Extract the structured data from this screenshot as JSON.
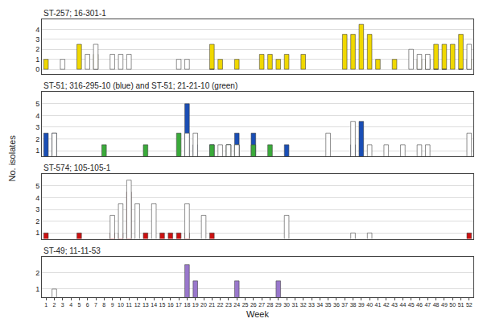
{
  "chart_data": [
    {
      "type": "bar",
      "title": "ST-257; 16-301-1",
      "xlim": [
        0.5,
        52.5
      ],
      "ylim": [
        -0.5,
        5
      ],
      "yticks": [
        0,
        1,
        2,
        3,
        4
      ],
      "grid": "y",
      "tick_labels": "y",
      "series": [
        {
          "color": "#f0d800",
          "x": [
            1,
            5,
            7,
            21,
            22,
            24,
            27,
            28,
            29,
            30,
            32,
            37,
            38,
            39,
            40,
            41,
            43,
            46,
            47,
            48,
            49,
            50,
            51,
            52
          ],
          "values": [
            1,
            2.5,
            1.5,
            2.5,
            1,
            1,
            1.5,
            1.5,
            1,
            1.5,
            1.5,
            3.5,
            3.5,
            4.5,
            3.5,
            1,
            1,
            1,
            1,
            2.5,
            2.5,
            2.5,
            3.5,
            1
          ]
        },
        {
          "color": "#ffffff",
          "x": [
            3,
            6,
            7,
            9,
            10,
            11,
            17,
            18,
            21,
            45,
            46,
            47,
            48,
            49,
            51,
            52
          ],
          "values": [
            1,
            1.5,
            2.5,
            1.5,
            1.5,
            1.5,
            1,
            1,
            0,
            2,
            1.5,
            1.5,
            0,
            0,
            0,
            2.5
          ]
        }
      ]
    },
    {
      "type": "bar",
      "title": "ST-51; 316-295-10 (blue) and ST-51; 21-21-10 (green)",
      "ylabel": "No. isolates",
      "xlim": [
        0.5,
        52.5
      ],
      "ylim": [
        0.5,
        6
      ],
      "yticks": [
        1,
        2,
        3,
        4,
        5
      ],
      "grid": "y",
      "tick_labels": "y",
      "series": [
        {
          "color": "#1a4eb5",
          "x": [
            1,
            2,
            18,
            19,
            21,
            23,
            24,
            26,
            30,
            38,
            39
          ],
          "values": [
            2.5,
            2.5,
            5,
            1.5,
            1.5,
            1.5,
            2.5,
            2.5,
            1.5,
            1.5,
            3.5
          ]
        },
        {
          "color": "#3aaa3a",
          "x": [
            8,
            13,
            17,
            21,
            23,
            24,
            26,
            28
          ],
          "values": [
            1.5,
            1.5,
            2.5,
            1.5,
            1.5,
            1.5,
            1.5,
            1.5
          ]
        },
        {
          "color": "#ffffff",
          "x": [
            2,
            18,
            19,
            22,
            23,
            24,
            35,
            38,
            40,
            42,
            44,
            46,
            47,
            52
          ],
          "values": [
            2.5,
            2.5,
            2.5,
            1.5,
            1.5,
            1.5,
            2.5,
            3.5,
            1.5,
            1.5,
            1.5,
            1.5,
            1.5,
            2.5
          ]
        }
      ]
    },
    {
      "type": "bar",
      "title": "ST-574; 105-105-1",
      "xlim": [
        0.5,
        52.5
      ],
      "ylim": [
        0.5,
        6
      ],
      "yticks": [
        1,
        2,
        3,
        4,
        5
      ],
      "grid": "y",
      "tick_labels": "y",
      "series": [
        {
          "color": "#cc1111",
          "x": [
            1,
            5,
            9,
            10,
            11,
            13,
            15,
            16,
            17,
            18,
            21,
            52
          ],
          "values": [
            1,
            1,
            1,
            1,
            4.5,
            1,
            1,
            1,
            1,
            1,
            1,
            1
          ]
        },
        {
          "color": "#ffffff",
          "x": [
            9,
            10,
            11,
            12,
            14,
            18,
            20,
            30,
            38,
            40
          ],
          "values": [
            2.5,
            3.5,
            5.5,
            3.5,
            3.5,
            3.5,
            2.5,
            2.5,
            1,
            1
          ]
        }
      ]
    },
    {
      "type": "bar",
      "title": "ST-49; 11-11-53",
      "xlabel": "Week",
      "xlim": [
        0.5,
        52.5
      ],
      "xticks": [
        1,
        2,
        3,
        4,
        5,
        6,
        7,
        8,
        9,
        10,
        11,
        12,
        13,
        14,
        15,
        16,
        17,
        18,
        19,
        20,
        21,
        22,
        23,
        24,
        25,
        26,
        27,
        28,
        29,
        30,
        31,
        32,
        33,
        34,
        35,
        36,
        37,
        38,
        39,
        40,
        41,
        42,
        43,
        44,
        45,
        46,
        47,
        48,
        49,
        50,
        51,
        52
      ],
      "ylim": [
        0.5,
        3
      ],
      "yticks": [
        1,
        2
      ],
      "grid": "y",
      "series": [
        {
          "color": "#9977cc",
          "x": [
            18,
            19,
            24,
            29
          ],
          "values": [
            2.5,
            1.5,
            1.5,
            1.5
          ]
        },
        {
          "color": "#ffffff",
          "x": [
            2
          ],
          "values": [
            1
          ]
        }
      ]
    }
  ]
}
